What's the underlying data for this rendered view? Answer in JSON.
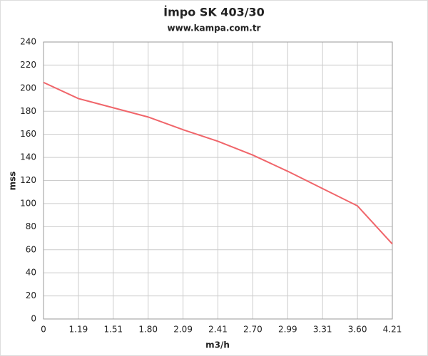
{
  "chart_data": {
    "type": "line",
    "title": "İmpo SK 403/30",
    "subtitle": "www.kampa.com.tr",
    "x_label": "m3/h",
    "y_label": "mss",
    "categories": [
      "0",
      "1.19",
      "1.51",
      "1.80",
      "2.09",
      "2.41",
      "2.70",
      "2.99",
      "3.31",
      "3.60",
      "4.21"
    ],
    "values": [
      205,
      191,
      183,
      175,
      164,
      154,
      142,
      128,
      113,
      98,
      65
    ],
    "color": "#f0656a",
    "ylim": [
      0,
      240
    ],
    "yticks": [
      0,
      20,
      40,
      60,
      80,
      100,
      120,
      140,
      160,
      180,
      200,
      220,
      240
    ],
    "grid": true
  }
}
